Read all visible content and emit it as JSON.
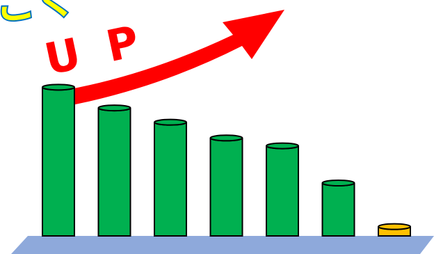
{
  "chart_data": {
    "type": "bar",
    "bar_style": "3d-cylinder",
    "categories": [
      "",
      "",
      "",
      "",
      "",
      "",
      ""
    ],
    "values": [
      208,
      179,
      159,
      137,
      126,
      74,
      13
    ],
    "title": "",
    "xlabel": "",
    "ylabel": "",
    "ylim": [
      0,
      330
    ],
    "grid": false,
    "legend": "none",
    "highlight_index": 6
  },
  "decoration": {
    "arrow_label": "UP",
    "headline_fragment": "ごく"
  },
  "colors": {
    "bar": "#00B050",
    "bar_highlight": "#FFC000",
    "outline": "#000000",
    "base": "#8EA9DB",
    "arrow": "#FF0000",
    "headline_fill": "#FFFF00",
    "headline_stroke": "#0070C0"
  }
}
